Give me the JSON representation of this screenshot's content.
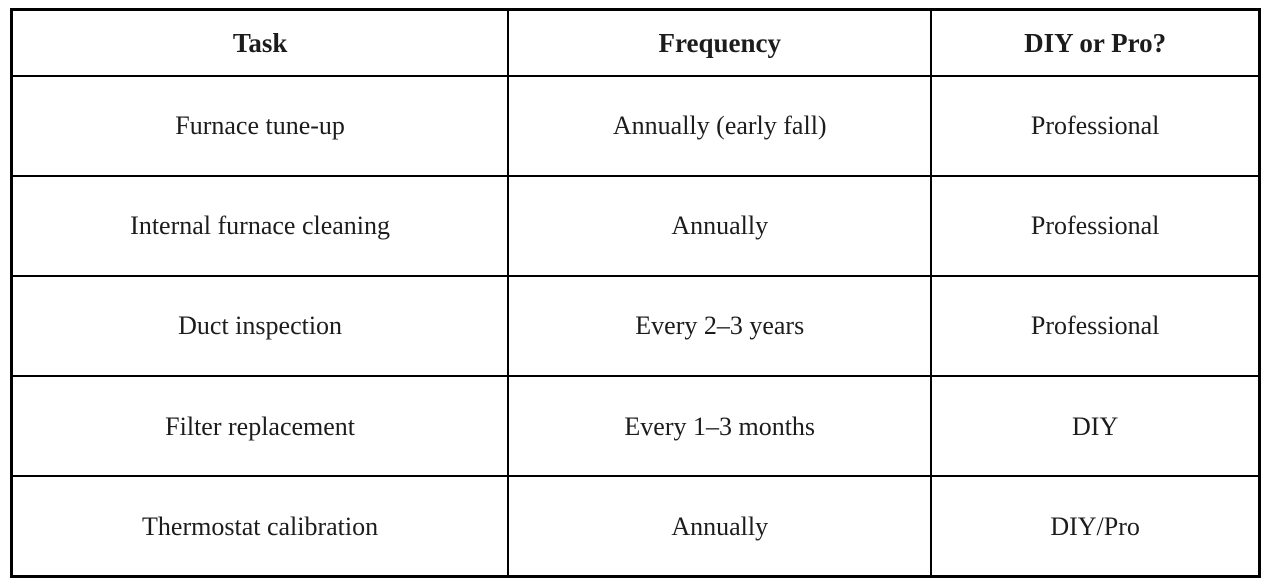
{
  "colors": {
    "background": "#ffffff",
    "border": "#000000",
    "text": "#1c1c1c"
  },
  "table": {
    "columns": [
      {
        "label": "Task"
      },
      {
        "label": "Frequency"
      },
      {
        "label": "DIY or Pro?"
      }
    ],
    "rows": [
      {
        "task": "Furnace tune-up",
        "frequency": "Annually (early fall)",
        "diy_or_pro": "Professional"
      },
      {
        "task": "Internal furnace cleaning",
        "frequency": "Annually",
        "diy_or_pro": "Professional"
      },
      {
        "task": "Duct inspection",
        "frequency": "Every 2–3 years",
        "diy_or_pro": "Professional"
      },
      {
        "task": "Filter replacement",
        "frequency": "Every 1–3 months",
        "diy_or_pro": "DIY"
      },
      {
        "task": "Thermostat calibration",
        "frequency": "Annually",
        "diy_or_pro": "DIY/Pro"
      }
    ]
  }
}
